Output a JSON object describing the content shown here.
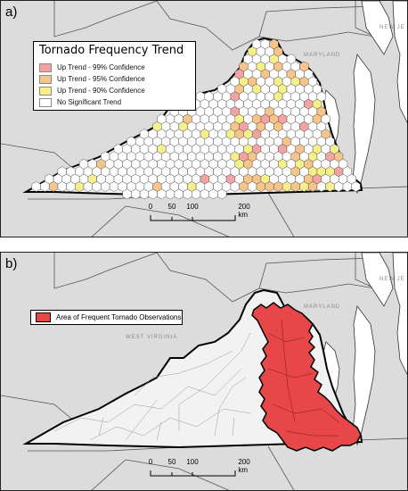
{
  "panel_a": {
    "label": "a)",
    "legend": {
      "title": "Tornado Frequency Trend",
      "items": [
        {
          "label": "Up Trend - 99% Confidence",
          "color": "#f4a3a3"
        },
        {
          "label": "Up Trend - 95% Confidence",
          "color": "#f7c48a"
        },
        {
          "label": "Up Trend - 90% Confidence",
          "color": "#f7f08a"
        },
        {
          "label": "No Significant Trend",
          "color": "#ffffff"
        }
      ]
    },
    "places": {
      "maryland": "MARYLAND",
      "new_jersey": "NEW JE"
    },
    "scale": {
      "ticks": [
        "0",
        "50",
        "100",
        "200 km"
      ]
    }
  },
  "panel_b": {
    "label": "b)",
    "legend": {
      "label": "Area of Frequent Tornado Observations",
      "color": "#e8474a"
    },
    "places": {
      "west_virginia": "WEST VIRGINIA",
      "maryland": "MARYLAND",
      "new_jersey": "NEW JE"
    },
    "scale": {
      "ticks": [
        "0",
        "50",
        "100",
        "200 km"
      ]
    }
  }
}
